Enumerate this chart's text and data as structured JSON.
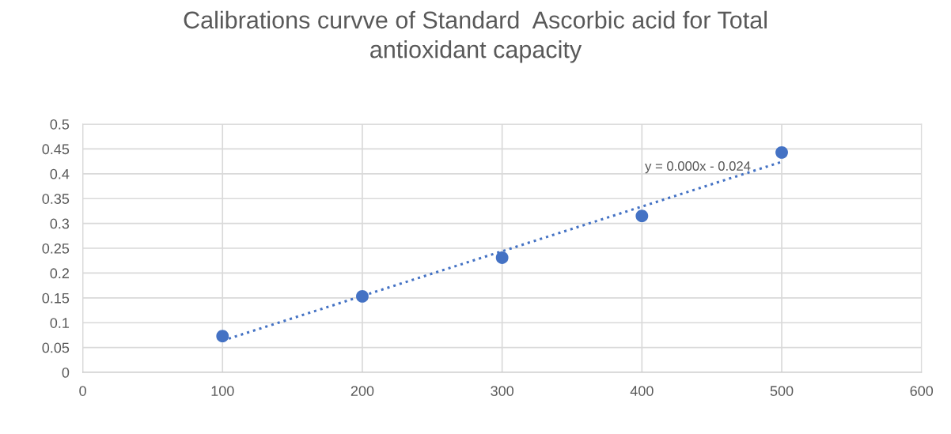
{
  "chart_data": {
    "type": "scatter",
    "title": "Calibrations curvve of Standard  Ascorbic acid for Total\nantioxidant capacity",
    "series": [
      {
        "color": "#4472c4",
        "marker": "circle",
        "x": [
          100,
          200,
          300,
          400,
          500
        ],
        "values": [
          0.073,
          0.153,
          0.231,
          0.315,
          0.443
        ]
      },
      {
        "type": "line",
        "color": "#4472c4",
        "line_style": "dotted",
        "marker": "none",
        "x": [
          100,
          500
        ],
        "values": [
          0.064,
          0.424
        ]
      }
    ],
    "annotations": [
      {
        "text": "y = 0.000x - 0.024",
        "x": 440,
        "y": 0.37
      }
    ],
    "xlim": [
      0,
      600
    ],
    "xticks": [
      0,
      100,
      200,
      300,
      400,
      500,
      600
    ],
    "ylim": [
      0,
      0.5
    ],
    "yticks": [
      0,
      0.05,
      0.1,
      0.15,
      0.2,
      0.25,
      0.3,
      0.35,
      0.4,
      0.45,
      0.5
    ],
    "grid": true,
    "legend": false
  }
}
